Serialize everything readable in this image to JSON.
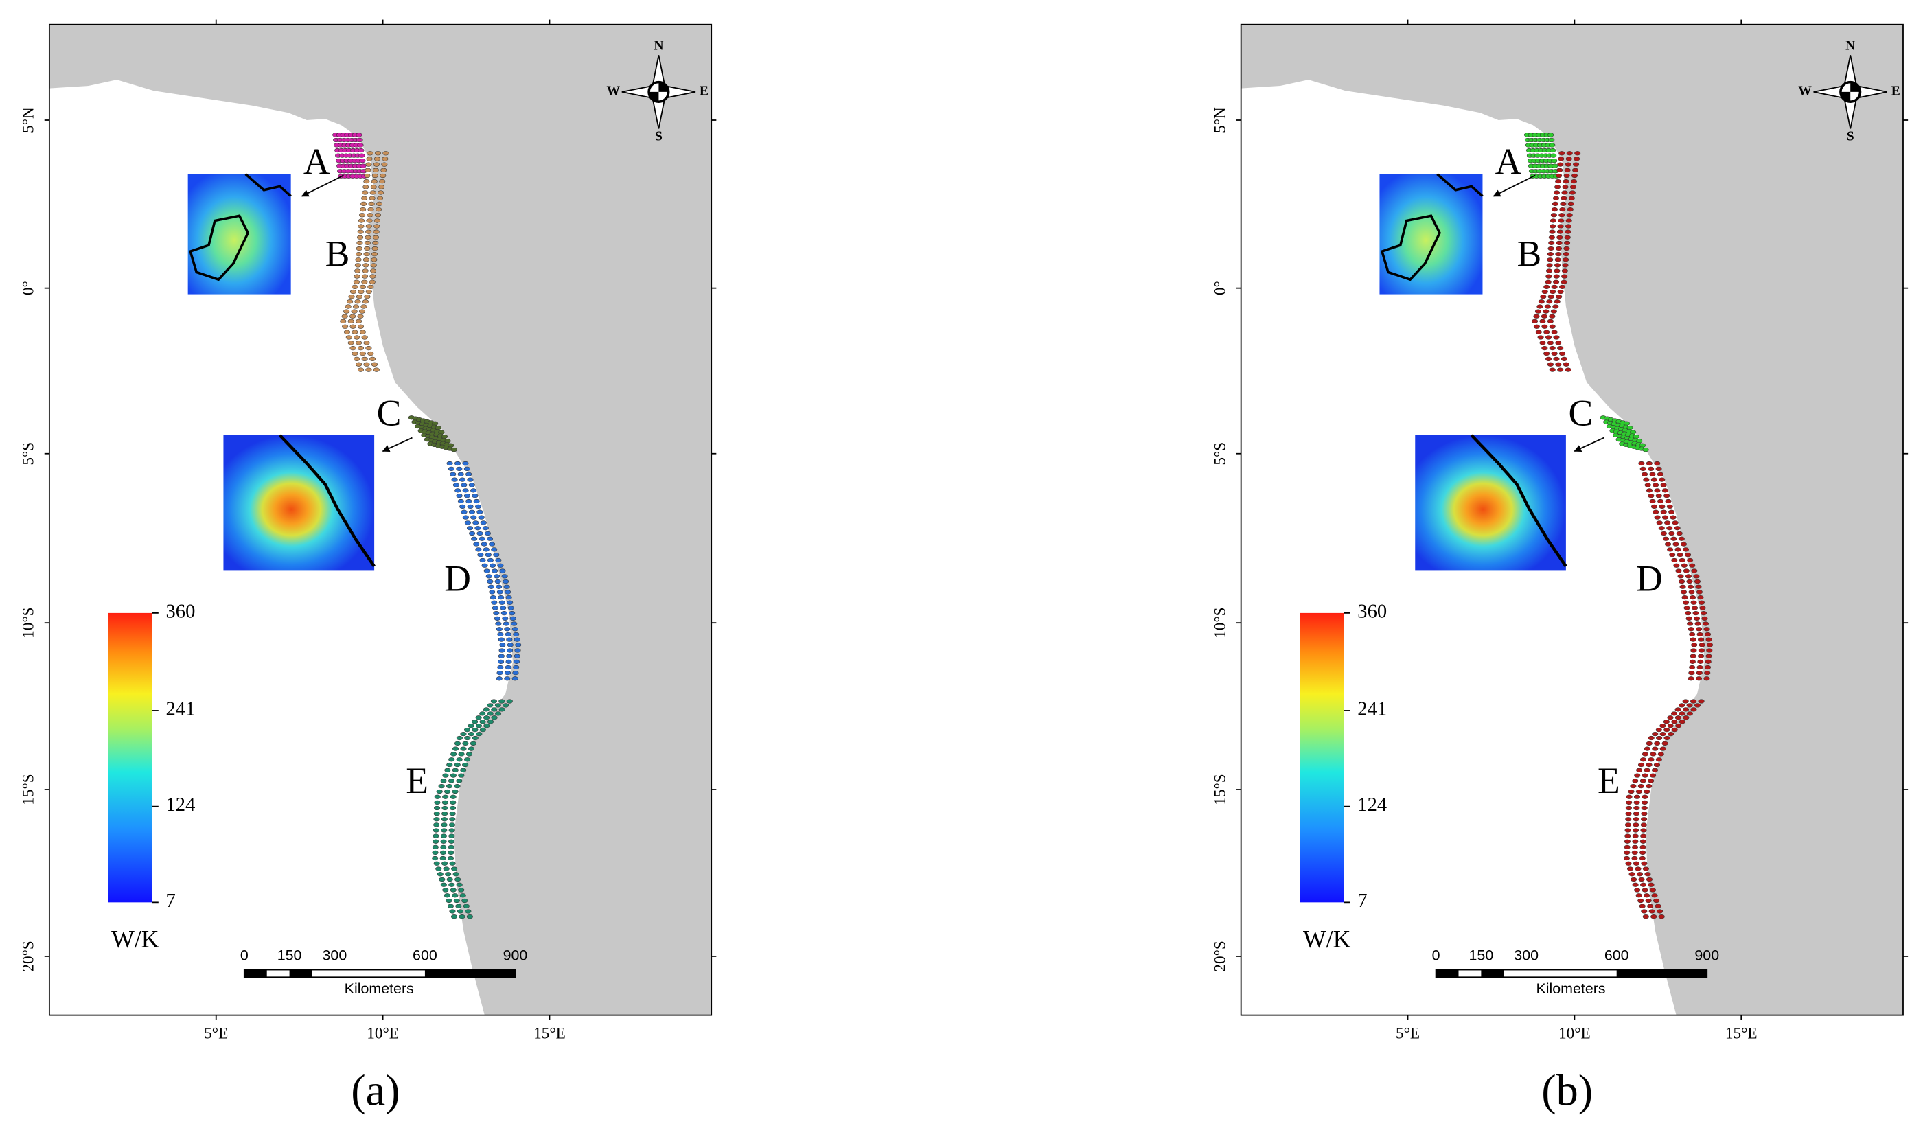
{
  "panels": [
    {
      "caption": "(a)",
      "latitude_labels": [
        "5°N",
        "0°",
        "5°S",
        "10°S",
        "15°S",
        "20°S"
      ],
      "longitude_labels": [
        "5°E",
        "10°E",
        "15°E"
      ],
      "regions": [
        "A",
        "B",
        "C",
        "D",
        "E"
      ],
      "region_colors": [
        "#d21fa8",
        "#c8905a",
        "#4f6b2c",
        "#2a6ed4",
        "#1e8a6a"
      ],
      "colorbar": {
        "ticks": [
          360,
          241,
          124,
          7
        ],
        "unit": "W/K"
      },
      "scale_bar": {
        "ticks": [
          0,
          150,
          300,
          600,
          900
        ],
        "unit": "Kilometers"
      },
      "compass": {
        "north": "N",
        "south": "S",
        "west": "W",
        "east": "E"
      }
    },
    {
      "caption": "(b)",
      "latitude_labels": [
        "5°N",
        "0°",
        "5°S",
        "10°S",
        "15°S",
        "20°S"
      ],
      "longitude_labels": [
        "5°E",
        "10°E",
        "15°E"
      ],
      "regions": [
        "A",
        "B",
        "C",
        "D",
        "E"
      ],
      "region_colors": [
        "#2ecc2e",
        "#b01818",
        "#2ecc2e",
        "#b01818",
        "#b01818"
      ],
      "colorbar": {
        "ticks": [
          360,
          241,
          124,
          7
        ],
        "unit": "W/K"
      },
      "scale_bar": {
        "ticks": [
          0,
          150,
          300,
          600,
          900
        ],
        "unit": "Kilometers"
      },
      "compass": {
        "north": "N",
        "south": "S",
        "west": "W",
        "east": "E"
      }
    }
  ]
}
